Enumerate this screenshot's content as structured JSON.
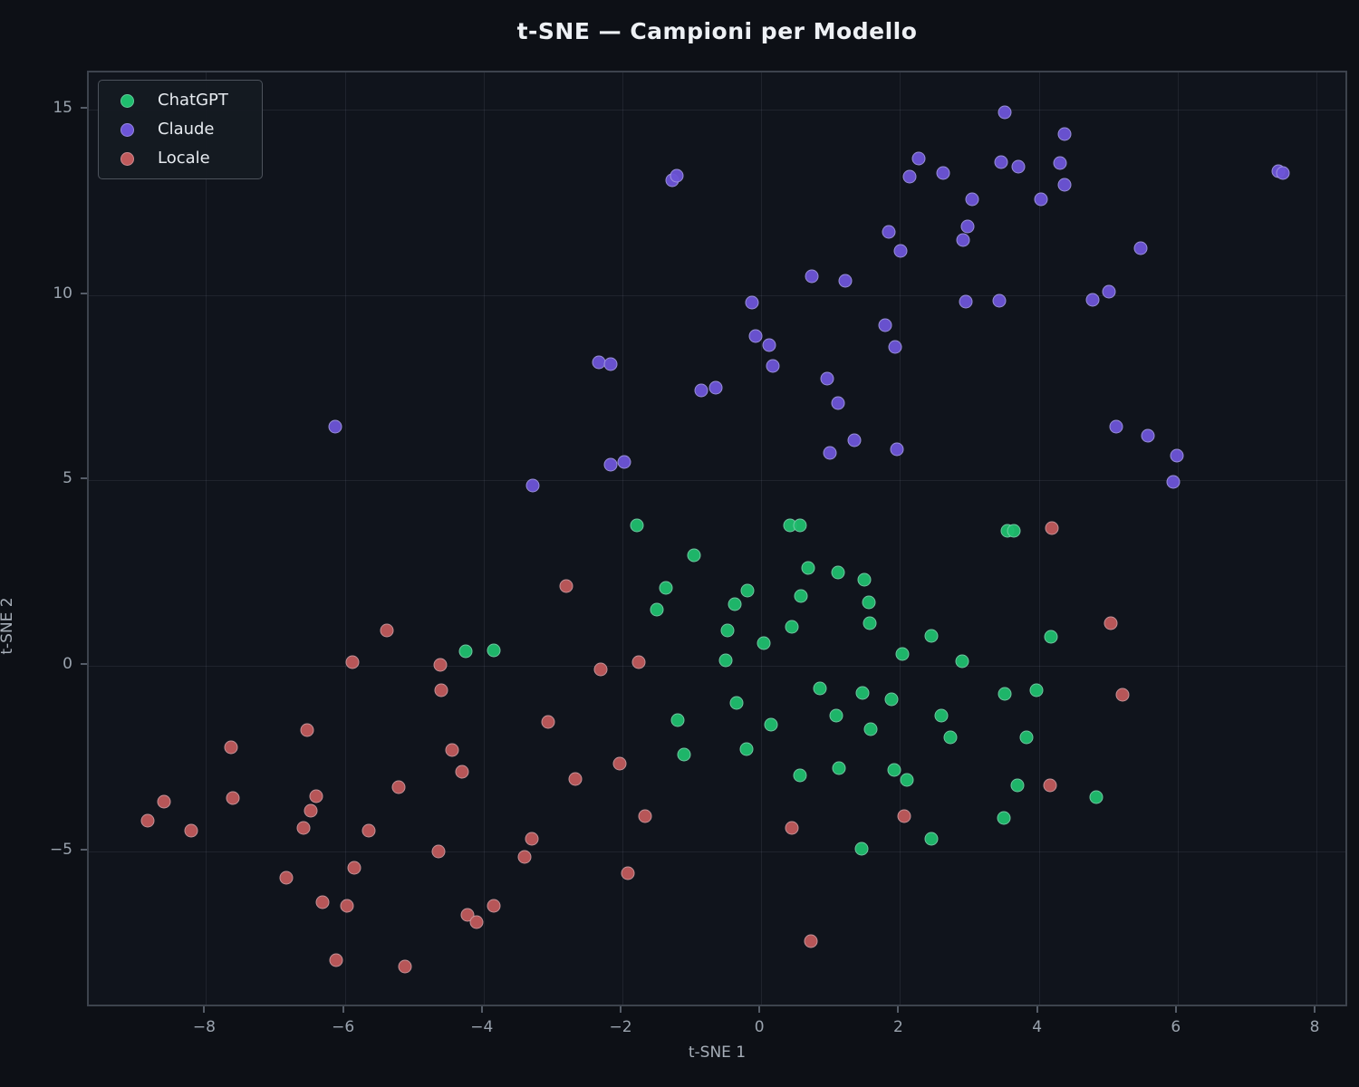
{
  "chart_data": {
    "type": "scatter",
    "title": "t-SNE — Campioni per Modello",
    "xlabel": "t-SNE 1",
    "ylabel": "t-SNE 2",
    "xlim": [
      -9.69,
      8.47
    ],
    "ylim": [
      -9.24,
      16.01
    ],
    "grid": true,
    "legend_position": "upper left",
    "x_ticks": [
      -8,
      -6,
      -4,
      -2,
      0,
      2,
      4,
      6,
      8
    ],
    "x_tick_labels": [
      "−8",
      "−6",
      "−4",
      "−2",
      "0",
      "2",
      "4",
      "6",
      "8"
    ],
    "y_ticks": [
      -5,
      0,
      5,
      10,
      15
    ],
    "y_tick_labels": [
      "−5",
      "0",
      "5",
      "10",
      "15"
    ],
    "series": [
      {
        "name": "ChatGPT",
        "color": "#1fbe6e",
        "points": [
          [
            -1.79,
            3.8
          ],
          [
            0.42,
            3.8
          ],
          [
            0.56,
            3.78
          ],
          [
            3.55,
            3.63
          ],
          [
            3.64,
            3.63
          ],
          [
            -0.97,
            2.98
          ],
          [
            0.67,
            2.63
          ],
          [
            1.11,
            2.51
          ],
          [
            1.49,
            2.32
          ],
          [
            -1.37,
            2.1
          ],
          [
            -0.2,
            2.02
          ],
          [
            0.57,
            1.88
          ],
          [
            1.55,
            1.71
          ],
          [
            -0.38,
            1.66
          ],
          [
            -1.51,
            1.51
          ],
          [
            1.57,
            1.15
          ],
          [
            0.44,
            1.05
          ],
          [
            -0.48,
            0.95
          ],
          [
            2.45,
            0.8
          ],
          [
            4.17,
            0.78
          ],
          [
            0.03,
            0.61
          ],
          [
            -3.86,
            0.41
          ],
          [
            -4.26,
            0.39
          ],
          [
            2.04,
            0.32
          ],
          [
            -0.51,
            0.15
          ],
          [
            2.89,
            0.12
          ],
          [
            0.84,
            -0.61
          ],
          [
            3.96,
            -0.66
          ],
          [
            1.46,
            -0.73
          ],
          [
            3.51,
            -0.76
          ],
          [
            1.88,
            -0.9
          ],
          [
            -0.35,
            -1.0
          ],
          [
            1.08,
            -1.34
          ],
          [
            2.6,
            -1.34
          ],
          [
            -1.2,
            -1.46
          ],
          [
            0.14,
            -1.59
          ],
          [
            1.58,
            -1.71
          ],
          [
            2.73,
            -1.93
          ],
          [
            3.82,
            -1.93
          ],
          [
            -0.21,
            -2.24
          ],
          [
            -1.11,
            -2.39
          ],
          [
            1.12,
            -2.76
          ],
          [
            1.91,
            -2.8
          ],
          [
            0.56,
            -2.95
          ],
          [
            2.1,
            -3.07
          ],
          [
            3.69,
            -3.22
          ],
          [
            4.83,
            -3.54
          ],
          [
            3.49,
            -4.1
          ],
          [
            1.44,
            -4.93
          ],
          [
            2.45,
            -4.67
          ]
        ]
      },
      {
        "name": "Claude",
        "color": "#6d55d8",
        "points": [
          [
            3.51,
            14.93
          ],
          [
            4.37,
            14.34
          ],
          [
            2.27,
            13.7
          ],
          [
            3.46,
            13.6
          ],
          [
            4.31,
            13.57
          ],
          [
            3.71,
            13.47
          ],
          [
            7.45,
            13.35
          ],
          [
            7.52,
            13.3
          ],
          [
            2.62,
            13.3
          ],
          [
            -1.28,
            13.1
          ],
          [
            -1.22,
            13.22
          ],
          [
            2.14,
            13.2
          ],
          [
            4.37,
            12.98
          ],
          [
            3.04,
            12.6
          ],
          [
            4.03,
            12.59
          ],
          [
            2.97,
            11.85
          ],
          [
            1.84,
            11.7
          ],
          [
            2.91,
            11.48
          ],
          [
            5.47,
            11.26
          ],
          [
            2.01,
            11.2
          ],
          [
            0.73,
            10.5
          ],
          [
            1.21,
            10.4
          ],
          [
            5.01,
            10.1
          ],
          [
            4.78,
            9.87
          ],
          [
            3.43,
            9.85
          ],
          [
            2.95,
            9.83
          ],
          [
            -0.13,
            9.8
          ],
          [
            1.78,
            9.2
          ],
          [
            -0.08,
            8.9
          ],
          [
            0.12,
            8.65
          ],
          [
            1.93,
            8.6
          ],
          [
            -2.34,
            8.2
          ],
          [
            -2.17,
            8.15
          ],
          [
            0.17,
            8.1
          ],
          [
            0.95,
            7.75
          ],
          [
            -0.65,
            7.5
          ],
          [
            -0.86,
            7.43
          ],
          [
            1.11,
            7.1
          ],
          [
            5.12,
            6.46
          ],
          [
            -6.14,
            6.45
          ],
          [
            5.57,
            6.21
          ],
          [
            1.34,
            6.08
          ],
          [
            1.95,
            5.83
          ],
          [
            0.99,
            5.75
          ],
          [
            5.99,
            5.67
          ],
          [
            -1.98,
            5.5
          ],
          [
            -2.17,
            5.42
          ],
          [
            5.94,
            4.97
          ],
          [
            -3.29,
            4.87
          ]
        ]
      },
      {
        "name": "Locale",
        "color": "#c05a5c",
        "points": [
          [
            4.19,
            3.71
          ],
          [
            -2.81,
            2.15
          ],
          [
            5.03,
            1.15
          ],
          [
            -5.4,
            0.95
          ],
          [
            -5.89,
            0.1
          ],
          [
            -1.76,
            0.1
          ],
          [
            -4.62,
            0.02
          ],
          [
            -2.32,
            -0.1
          ],
          [
            -4.61,
            -0.66
          ],
          [
            5.21,
            -0.78
          ],
          [
            -3.07,
            -1.51
          ],
          [
            -6.55,
            -1.73
          ],
          [
            -7.64,
            -2.2
          ],
          [
            -4.45,
            -2.27
          ],
          [
            -2.04,
            -2.63
          ],
          [
            -4.31,
            -2.85
          ],
          [
            -2.68,
            -3.05
          ],
          [
            -5.22,
            -3.27
          ],
          [
            4.16,
            -3.22
          ],
          [
            -8.6,
            -3.66
          ],
          [
            -7.61,
            -3.56
          ],
          [
            -6.41,
            -3.51
          ],
          [
            -6.49,
            -3.9
          ],
          [
            -8.84,
            -4.17
          ],
          [
            -8.21,
            -4.46
          ],
          [
            -6.6,
            -4.37
          ],
          [
            -5.65,
            -4.46
          ],
          [
            -1.68,
            -4.07
          ],
          [
            0.44,
            -4.37
          ],
          [
            2.06,
            -4.07
          ],
          [
            -4.65,
            -5.0
          ],
          [
            -3.3,
            -4.66
          ],
          [
            -3.41,
            -5.15
          ],
          [
            -5.87,
            -5.44
          ],
          [
            -6.84,
            -5.73
          ],
          [
            -1.92,
            -5.59
          ],
          [
            -6.32,
            -6.37
          ],
          [
            -5.97,
            -6.49
          ],
          [
            -3.85,
            -6.49
          ],
          [
            -4.23,
            -6.73
          ],
          [
            -4.1,
            -6.93
          ],
          [
            0.72,
            -7.44
          ],
          [
            -6.13,
            -7.95
          ],
          [
            -5.14,
            -8.12
          ]
        ]
      }
    ],
    "colors": {
      "background": "#0d1016",
      "axes_background": "#10141c",
      "spine": "#3d434d",
      "grid": "rgba(170,180,195,0.10)",
      "tick_label": "#9aa3ae",
      "title": "#eef1f5",
      "legend_background": "#151a22",
      "legend_border": "#4d535c",
      "legend_text": "#e6eaef"
    }
  }
}
